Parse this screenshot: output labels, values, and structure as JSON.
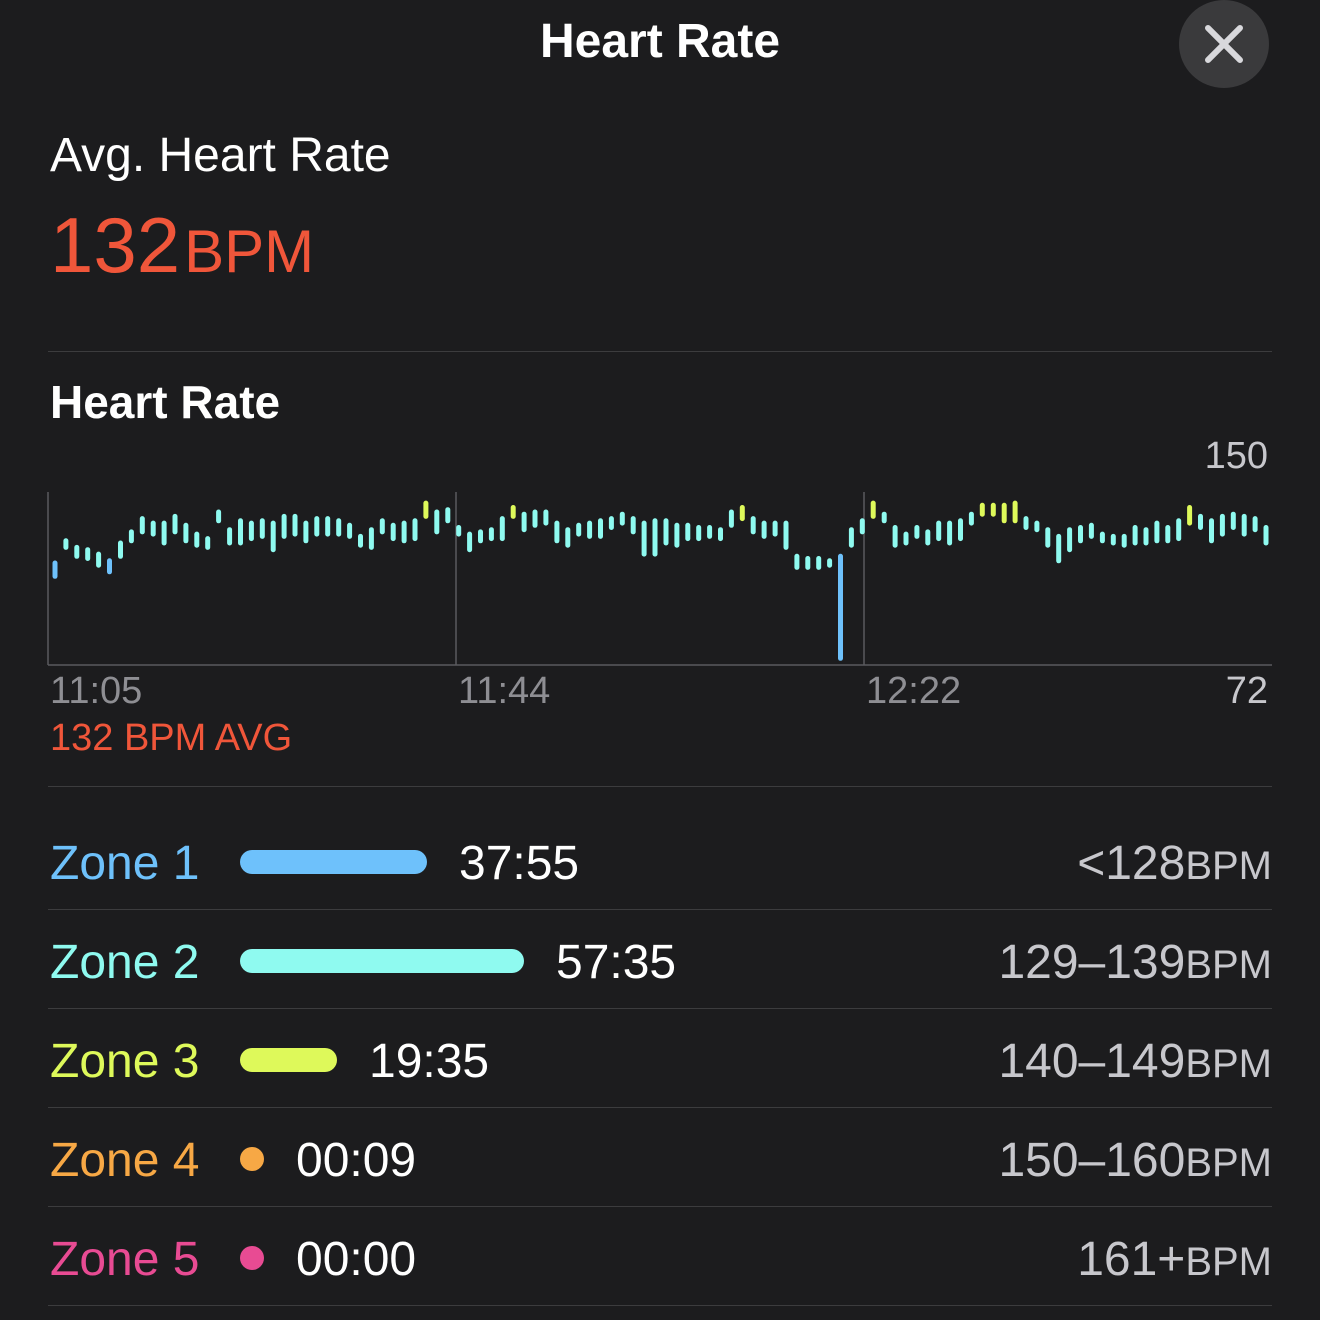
{
  "header": {
    "title": "Heart Rate"
  },
  "summary": {
    "label": "Avg. Heart Rate",
    "value": "132",
    "unit": "BPM"
  },
  "chart": {
    "title": "Heart Rate",
    "y_max_label": "150",
    "y_min_label": "72",
    "x_ticks": [
      "11:05",
      "11:44",
      "12:22"
    ],
    "avg_caption": "132 BPM AVG"
  },
  "chart_data": {
    "type": "bar",
    "title": "Heart Rate",
    "ylim": [
      72,
      150
    ],
    "x_ticks": [
      "11:05",
      "11:44",
      "12:22"
    ],
    "bar_style": "range",
    "series": [
      {
        "name": "",
        "ranges": [
          [
            112,
            118
          ],
          [
            125,
            128
          ],
          [
            121,
            125
          ],
          [
            120,
            124
          ],
          [
            117,
            122
          ],
          [
            114,
            119
          ],
          [
            121,
            127
          ],
          [
            128,
            132
          ],
          [
            132,
            138
          ],
          [
            131,
            136
          ],
          [
            127,
            136
          ],
          [
            132,
            139
          ],
          [
            128,
            135
          ],
          [
            126,
            131
          ],
          [
            125,
            129
          ],
          [
            137,
            141
          ],
          [
            127,
            133
          ],
          [
            127,
            137
          ],
          [
            129,
            136
          ],
          [
            130,
            137
          ],
          [
            124,
            136
          ],
          [
            130,
            139
          ],
          [
            131,
            139
          ],
          [
            128,
            136
          ],
          [
            131,
            138
          ],
          [
            131,
            138
          ],
          [
            131,
            137
          ],
          [
            130,
            135
          ],
          [
            126,
            130
          ],
          [
            125,
            133
          ],
          [
            132,
            137
          ],
          [
            129,
            135
          ],
          [
            128,
            136
          ],
          [
            129,
            137
          ],
          [
            139,
            145
          ],
          [
            132,
            141
          ],
          [
            137,
            142
          ],
          [
            131,
            134
          ],
          [
            124,
            131
          ],
          [
            128,
            132
          ],
          [
            129,
            133
          ],
          [
            129,
            138
          ],
          [
            139,
            143
          ],
          [
            133,
            140
          ],
          [
            135,
            141
          ],
          [
            136,
            141
          ],
          [
            128,
            136
          ],
          [
            126,
            133
          ],
          [
            131,
            135
          ],
          [
            130,
            136
          ],
          [
            130,
            137
          ],
          [
            134,
            138
          ],
          [
            136,
            140
          ],
          [
            132,
            138
          ],
          [
            122,
            136
          ],
          [
            122,
            137
          ],
          [
            127,
            137
          ],
          [
            126,
            135
          ],
          [
            129,
            135
          ],
          [
            129,
            134
          ],
          [
            130,
            134
          ],
          [
            129,
            133
          ],
          [
            135,
            141
          ],
          [
            138,
            143
          ],
          [
            132,
            138
          ],
          [
            130,
            136
          ],
          [
            131,
            136
          ],
          [
            125,
            136
          ],
          [
            116,
            121
          ],
          [
            116,
            120
          ],
          [
            116,
            120
          ],
          [
            117,
            119
          ],
          [
            75,
            121
          ],
          [
            126,
            133
          ],
          [
            132,
            137
          ],
          [
            139,
            145
          ],
          [
            137,
            140
          ],
          [
            126,
            134
          ],
          [
            127,
            131
          ],
          [
            130,
            134
          ],
          [
            127,
            132
          ],
          [
            129,
            136
          ],
          [
            127,
            136
          ],
          [
            129,
            137
          ],
          [
            136,
            140
          ],
          [
            140,
            144
          ],
          [
            140,
            144
          ],
          [
            137,
            144
          ],
          [
            137,
            145
          ],
          [
            134,
            138
          ],
          [
            133,
            136
          ],
          [
            126,
            133
          ],
          [
            119,
            130
          ],
          [
            124,
            133
          ],
          [
            128,
            134
          ],
          [
            130,
            135
          ],
          [
            128,
            131
          ],
          [
            127,
            130
          ],
          [
            126,
            130
          ],
          [
            127,
            134
          ],
          [
            127,
            133
          ],
          [
            128,
            136
          ],
          [
            128,
            134
          ],
          [
            129,
            137
          ],
          [
            136,
            143
          ],
          [
            134,
            139
          ],
          [
            128,
            137
          ],
          [
            131,
            139
          ],
          [
            134,
            140
          ],
          [
            131,
            139
          ],
          [
            133,
            138
          ],
          [
            127,
            134
          ]
        ]
      }
    ]
  },
  "zones": [
    {
      "name": "Zone 1",
      "time": "37:55",
      "range": "<128",
      "unit": "BPM",
      "color": "#6ec1fb",
      "fraction": 0.329
    },
    {
      "name": "Zone 2",
      "time": "57:35",
      "range": "129–139",
      "unit": "BPM",
      "color": "#8ffaf0",
      "fraction": 0.5
    },
    {
      "name": "Zone 3",
      "time": "19:35",
      "range": "140–149",
      "unit": "BPM",
      "color": "#def95a",
      "fraction": 0.17
    },
    {
      "name": "Zone 4",
      "time": "00:09",
      "range": "150–160",
      "unit": "BPM",
      "color": "#f7a845",
      "fraction": 0.0013
    },
    {
      "name": "Zone 5",
      "time": "00:00",
      "range": "161+",
      "unit": "BPM",
      "color": "#e84b93",
      "fraction": 0
    }
  ]
}
